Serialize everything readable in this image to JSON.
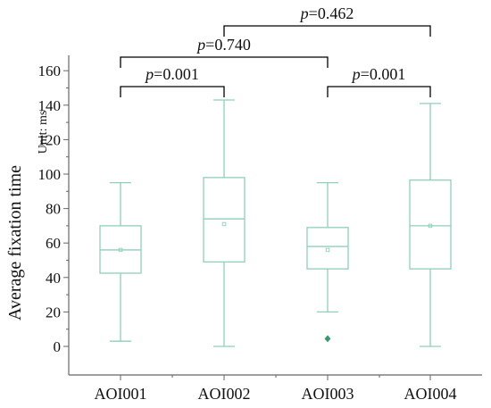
{
  "chart_data": {
    "type": "box",
    "ylabel": "Average fixation time",
    "unit_label": "Unit: ms",
    "ylim": [
      -10,
      160
    ],
    "yticks": [
      0,
      20,
      40,
      60,
      80,
      100,
      120,
      140,
      160
    ],
    "categories": [
      "AOI001",
      "AOI002",
      "AOI003",
      "AOI004"
    ],
    "boxes": [
      {
        "category": "AOI001",
        "min": 3,
        "q1": 42.5,
        "median": 56,
        "q3": 70,
        "max": 95,
        "mean": 56,
        "outliers": []
      },
      {
        "category": "AOI002",
        "min": 0,
        "q1": 49,
        "median": 74,
        "q3": 98,
        "max": 143,
        "mean": 71,
        "outliers": []
      },
      {
        "category": "AOI003",
        "min": 20,
        "q1": 45,
        "median": 58,
        "q3": 69,
        "max": 95,
        "mean": 56,
        "outliers": [
          4.5
        ]
      },
      {
        "category": "AOI004",
        "min": 0,
        "q1": 45,
        "median": 70,
        "q3": 96.5,
        "max": 141,
        "mean": 70,
        "outliers": []
      }
    ],
    "comparisons": [
      {
        "from": "AOI001",
        "to": "AOI002",
        "p_symbol": "p",
        "p_value": "=0.001"
      },
      {
        "from": "AOI003",
        "to": "AOI004",
        "p_symbol": "p",
        "p_value": "=0.001"
      },
      {
        "from": "AOI001",
        "to": "AOI003",
        "p_symbol": "p",
        "p_value": "=0.740"
      },
      {
        "from": "AOI002",
        "to": "AOI004",
        "p_symbol": "p",
        "p_value": "=0.462"
      }
    ],
    "colors": {
      "box": "#8fcfbb",
      "outlier": "#3a9a6e",
      "axis": "#666666",
      "bracket": "#000000"
    }
  }
}
